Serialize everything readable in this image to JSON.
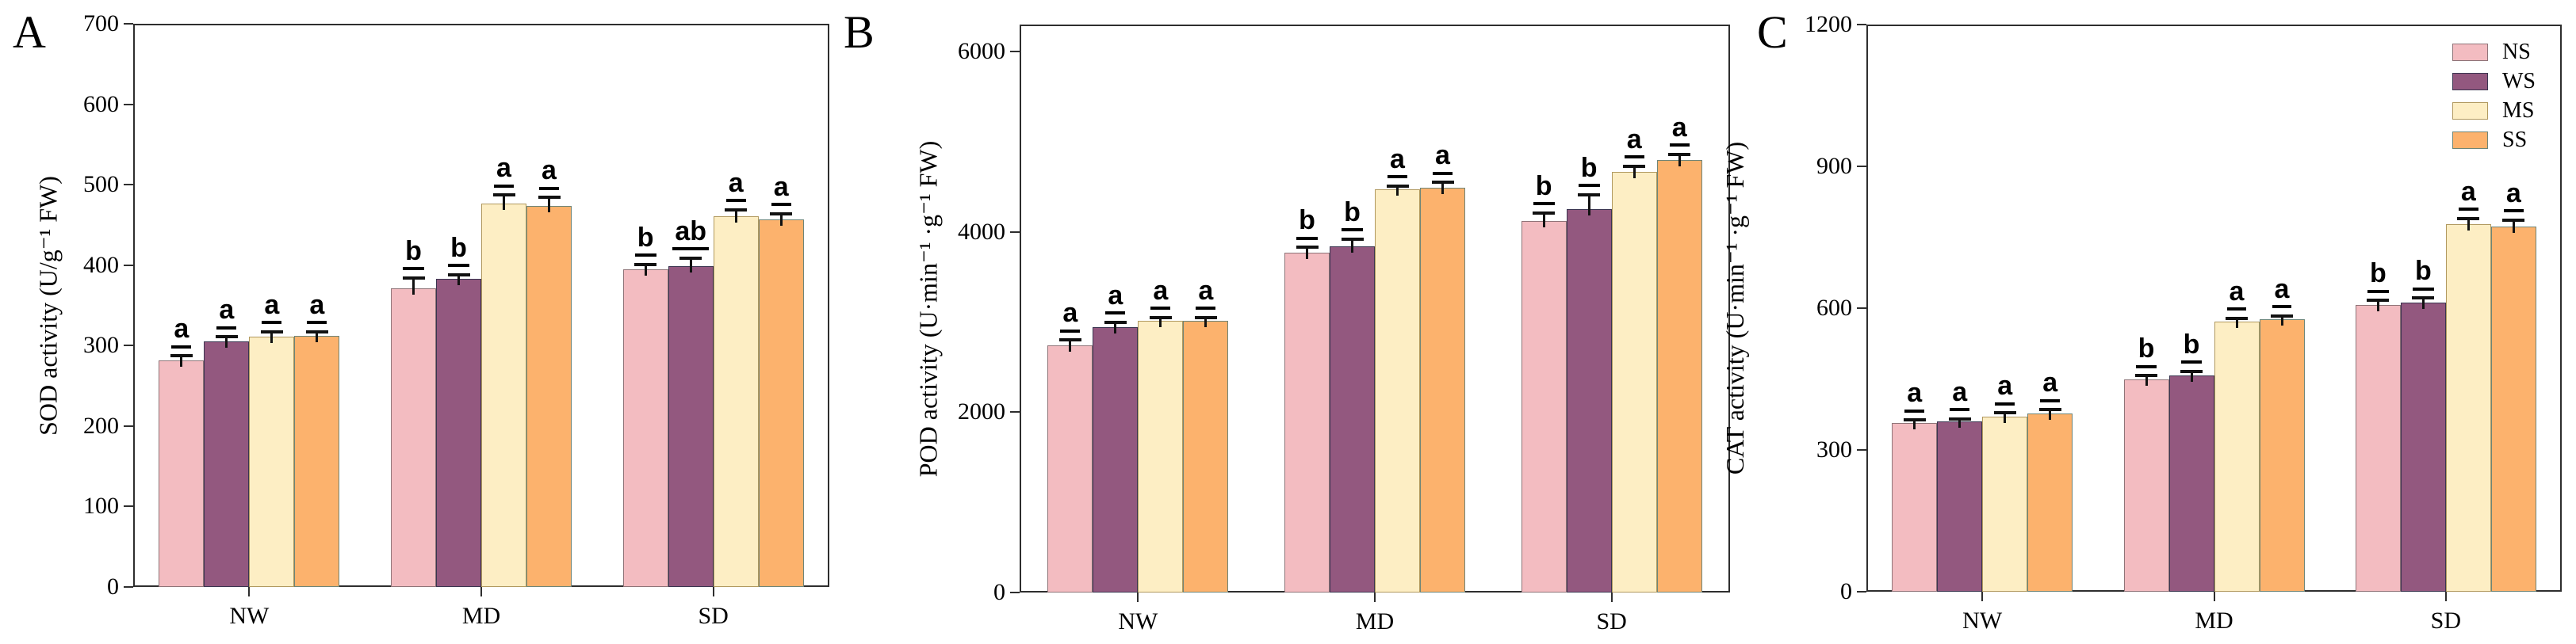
{
  "figure": {
    "panel_letters": [
      "A",
      "B",
      "C"
    ],
    "colors": {
      "background": "#ffffff",
      "axis": "#2e2e2e",
      "error_bar": "#111111",
      "sig_letter": "#000000"
    },
    "legend": {
      "shown_on_panel": "C",
      "position": "top-right",
      "items": [
        {
          "label": "NS",
          "fill": "#f3bcc1",
          "border": "#8f7478"
        },
        {
          "label": "WS",
          "fill": "#93587f",
          "border": "#3a3550"
        },
        {
          "label": "MS",
          "fill": "#fdeec4",
          "border": "#b1995f"
        },
        {
          "label": "SS",
          "fill": "#fcb26d",
          "border": "#6e8578"
        }
      ]
    }
  },
  "chart_data": [
    {
      "type": "bar",
      "panel": "A",
      "title": "",
      "ylabel": "SOD activity (U/g⁻¹ FW)",
      "xlabel": "",
      "categories": [
        "NW",
        "MD",
        "SD"
      ],
      "ylim": [
        0,
        700
      ],
      "yticks": [
        0,
        100,
        200,
        300,
        400,
        500,
        600,
        700
      ],
      "grid": false,
      "legend_shown": false,
      "series": [
        {
          "name": "NS",
          "values": [
            282,
            371,
            395
          ],
          "errors": [
            5,
            13,
            6
          ],
          "sig_letters": [
            "a",
            "b",
            "b"
          ]
        },
        {
          "name": "WS",
          "values": [
            305,
            383,
            399
          ],
          "errors": [
            6,
            5,
            10
          ],
          "sig_letters": [
            "a",
            "b",
            "ab"
          ]
        },
        {
          "name": "MS",
          "values": [
            311,
            477,
            461
          ],
          "errors": [
            6,
            10,
            8
          ],
          "sig_letters": [
            "a",
            "a",
            "a"
          ]
        },
        {
          "name": "SS",
          "values": [
            312,
            474,
            457
          ],
          "errors": [
            5,
            10,
            7
          ],
          "sig_letters": [
            "a",
            "a",
            "a"
          ]
        }
      ]
    },
    {
      "type": "bar",
      "panel": "B",
      "title": "",
      "ylabel": "POD activity (U·min⁻¹ ·g⁻¹ FW)",
      "xlabel": "",
      "categories": [
        "NW",
        "MD",
        "SD"
      ],
      "ylim": [
        0,
        6300
      ],
      "yticks": [
        0,
        2000,
        4000,
        6000
      ],
      "grid": false,
      "legend_shown": false,
      "series": [
        {
          "name": "NS",
          "values": [
            2740,
            3770,
            4120
          ],
          "errors": [
            60,
            60,
            90
          ],
          "sig_letters": [
            "a",
            "b",
            "b"
          ]
        },
        {
          "name": "WS",
          "values": [
            2940,
            3840,
            4250
          ],
          "errors": [
            60,
            80,
            160
          ],
          "sig_letters": [
            "a",
            "b",
            "b"
          ]
        },
        {
          "name": "MS",
          "values": [
            3010,
            4470,
            4670
          ],
          "errors": [
            40,
            40,
            60
          ],
          "sig_letters": [
            "a",
            "a",
            "a"
          ]
        },
        {
          "name": "SS",
          "values": [
            3010,
            4490,
            4800
          ],
          "errors": [
            40,
            60,
            60
          ],
          "sig_letters": [
            "a",
            "a",
            "a"
          ]
        }
      ]
    },
    {
      "type": "bar",
      "panel": "C",
      "title": "",
      "ylabel": "CAT activity (U·min⁻¹ ·g⁻¹ FW)",
      "xlabel": "",
      "categories": [
        "NW",
        "MD",
        "SD"
      ],
      "ylim": [
        0,
        1200
      ],
      "yticks": [
        0,
        300,
        600,
        900,
        1200
      ],
      "grid": false,
      "legend_shown": true,
      "series": [
        {
          "name": "NS",
          "values": [
            357,
            449,
            606
          ],
          "errors": [
            6,
            8,
            10
          ],
          "sig_letters": [
            "a",
            "b",
            "b"
          ]
        },
        {
          "name": "WS",
          "values": [
            360,
            458,
            611
          ],
          "errors": [
            6,
            8,
            10
          ],
          "sig_letters": [
            "a",
            "b",
            "b"
          ]
        },
        {
          "name": "MS",
          "values": [
            370,
            571,
            778
          ],
          "errors": [
            8,
            8,
            12
          ],
          "sig_letters": [
            "a",
            "a",
            "a"
          ]
        },
        {
          "name": "SS",
          "values": [
            377,
            576,
            772
          ],
          "errors": [
            8,
            8,
            14
          ],
          "sig_letters": [
            "a",
            "a",
            "a"
          ]
        }
      ]
    }
  ]
}
